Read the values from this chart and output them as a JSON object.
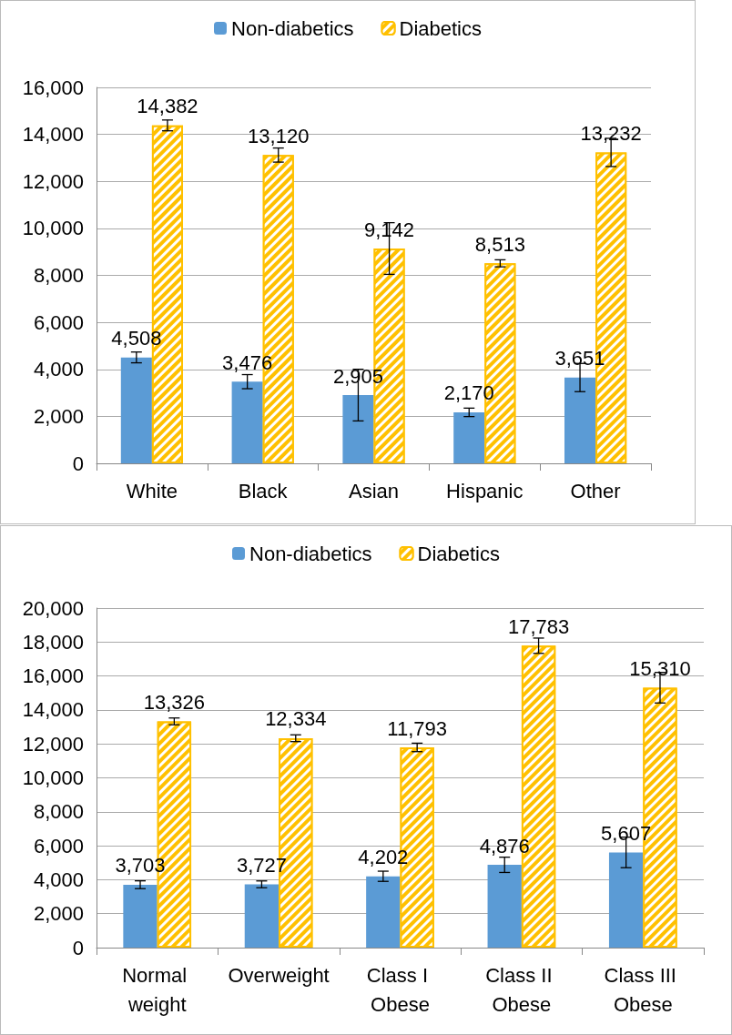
{
  "chart_data": [
    {
      "type": "bar",
      "categories": [
        "White",
        "Black",
        "Asian",
        "Hispanic",
        "Other"
      ],
      "series": [
        {
          "name": "Non-diabetics",
          "color": "#5b9bd5",
          "values": [
            4508,
            3476,
            2905,
            2170,
            3651
          ],
          "value_labels": [
            "4,508",
            "3,476",
            "2,905",
            "2,170",
            "3,651"
          ],
          "errors": [
            230,
            300,
            1100,
            180,
            600
          ]
        },
        {
          "name": "Diabetics",
          "color": "#ffc000",
          "values": [
            14382,
            13120,
            9142,
            8513,
            13232
          ],
          "value_labels": [
            "14,382",
            "13,120",
            "9,142",
            "8,513",
            "13,232"
          ],
          "errors": [
            230,
            300,
            1100,
            150,
            600
          ]
        }
      ],
      "ylim": [
        0,
        16000
      ],
      "yticks": [
        0,
        {
          "value": 2000,
          "label": "2,000"
        },
        {
          "value": 4000,
          "label": "4,000"
        },
        {
          "value": 6000,
          "label": "6,000"
        },
        {
          "value": 8000,
          "label": "8,000"
        },
        {
          "value": 10000,
          "label": "10,000"
        },
        {
          "value": 12000,
          "label": "12,000"
        },
        {
          "value": 14000,
          "label": "14,000"
        },
        {
          "value": 16000,
          "label": "16,000"
        }
      ],
      "grid": "y",
      "legend": "top"
    },
    {
      "type": "bar",
      "categories": [
        "Normal weight",
        "Overweight",
        "Class I Obese",
        "Class II Obese",
        "Class III Obese"
      ],
      "series": [
        {
          "name": "Non-diabetics",
          "color": "#5b9bd5",
          "values": [
            3703,
            3727,
            4202,
            4876,
            5607
          ],
          "value_labels": [
            "3,703",
            "3,727",
            "4,202",
            "4,876",
            "5,607"
          ],
          "errors": [
            230,
            200,
            300,
            450,
            900
          ]
        },
        {
          "name": "Diabetics",
          "color": "#ffc000",
          "values": [
            13326,
            12334,
            11793,
            17783,
            15310
          ],
          "value_labels": [
            "13,326",
            "12,334",
            "11,793",
            "17,783",
            "15,310"
          ],
          "errors": [
            200,
            200,
            250,
            450,
            900
          ]
        }
      ],
      "ylim": [
        0,
        20000
      ],
      "yticks": [
        0,
        {
          "value": 2000,
          "label": "2,000"
        },
        {
          "value": 4000,
          "label": "4,000"
        },
        {
          "value": 6000,
          "label": "6,000"
        },
        {
          "value": 8000,
          "label": "8,000"
        },
        {
          "value": 10000,
          "label": "10,000"
        },
        {
          "value": 12000,
          "label": "12,000"
        },
        {
          "value": 14000,
          "label": "14,000"
        },
        {
          "value": 16000,
          "label": "16,000"
        },
        {
          "value": 18000,
          "label": "18,000"
        },
        {
          "value": 20000,
          "label": "20,000"
        }
      ],
      "grid": "y",
      "legend": "top"
    }
  ]
}
